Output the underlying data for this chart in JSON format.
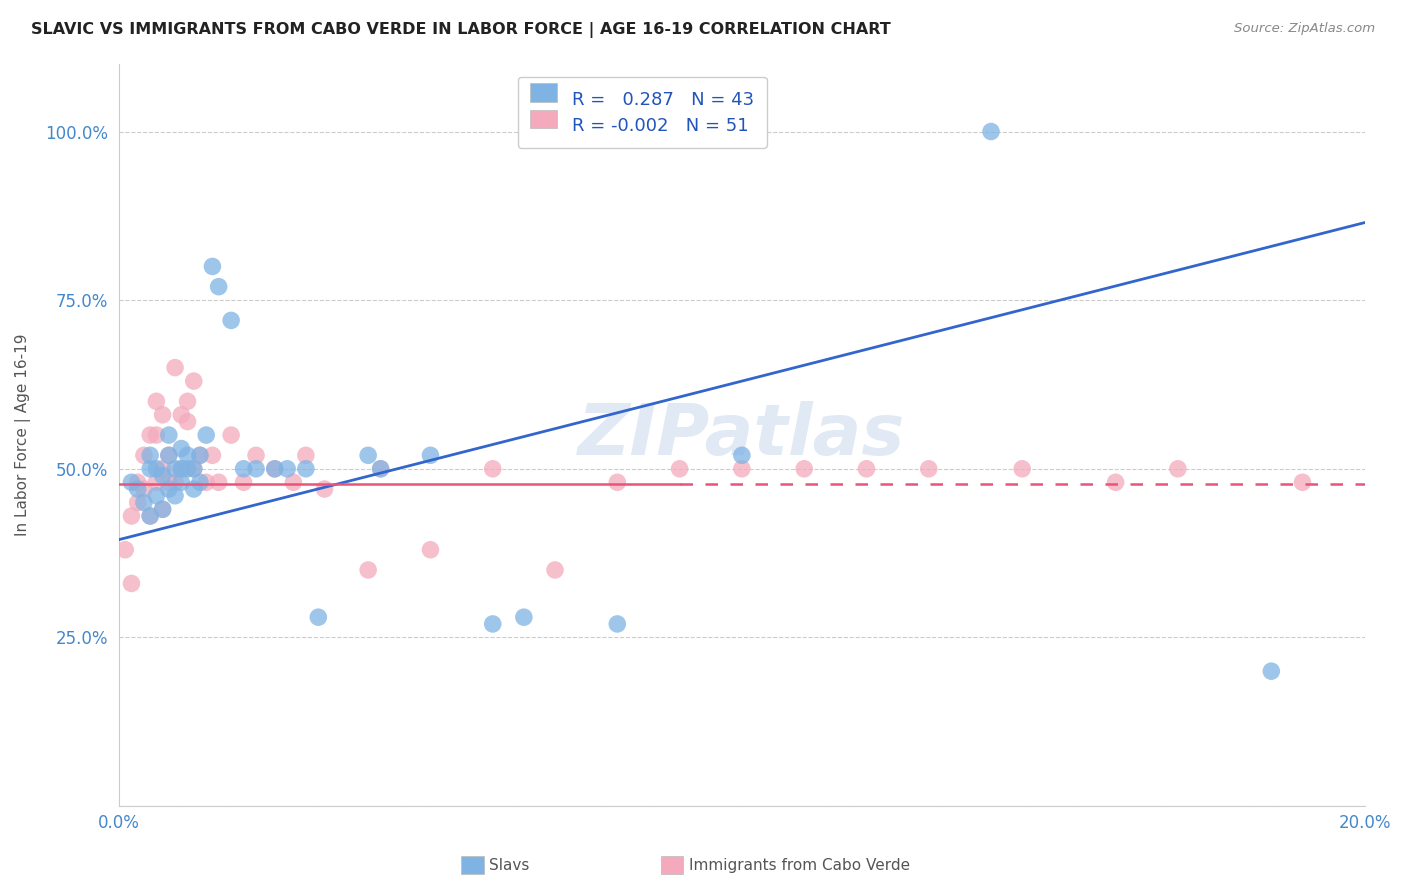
{
  "title": "SLAVIC VS IMMIGRANTS FROM CABO VERDE IN LABOR FORCE | AGE 16-19 CORRELATION CHART",
  "source": "Source: ZipAtlas.com",
  "ylabel_label": "In Labor Force | Age 16-19",
  "xlim": [
    0.0,
    0.2
  ],
  "ylim": [
    0.0,
    1.1
  ],
  "xticks": [
    0.0,
    0.04,
    0.08,
    0.12,
    0.16,
    0.2
  ],
  "xtick_labels": [
    "0.0%",
    "",
    "",
    "",
    "",
    "20.0%"
  ],
  "ytick_positions": [
    0.0,
    0.25,
    0.5,
    0.75,
    1.0
  ],
  "ytick_labels": [
    "",
    "25.0%",
    "50.0%",
    "75.0%",
    "100.0%"
  ],
  "blue_R": 0.287,
  "blue_N": 43,
  "pink_R": -0.002,
  "pink_N": 51,
  "blue_color": "#7EB3E3",
  "pink_color": "#F4AABC",
  "trendline_blue_color": "#3366CC",
  "trendline_pink_color": "#E8547A",
  "background_color": "#FFFFFF",
  "grid_color": "#CCCCCC",
  "watermark_text": "ZIPatlas",
  "blue_trendline_x0": 0.0,
  "blue_trendline_y0": 0.395,
  "blue_trendline_x1": 0.2,
  "blue_trendline_y1": 0.865,
  "pink_trendline_x0": 0.0,
  "pink_trendline_y0": 0.477,
  "pink_trendline_x1": 0.2,
  "pink_trendline_y1": 0.477,
  "blue_scatter_x": [
    0.002,
    0.003,
    0.004,
    0.005,
    0.005,
    0.005,
    0.006,
    0.006,
    0.007,
    0.007,
    0.008,
    0.008,
    0.008,
    0.009,
    0.009,
    0.01,
    0.01,
    0.01,
    0.011,
    0.011,
    0.012,
    0.012,
    0.013,
    0.013,
    0.014,
    0.015,
    0.016,
    0.018,
    0.02,
    0.022,
    0.025,
    0.027,
    0.03,
    0.032,
    0.04,
    0.042,
    0.05,
    0.06,
    0.065,
    0.08,
    0.1,
    0.14,
    0.185
  ],
  "blue_scatter_y": [
    0.48,
    0.47,
    0.45,
    0.5,
    0.43,
    0.52,
    0.46,
    0.5,
    0.49,
    0.44,
    0.47,
    0.52,
    0.55,
    0.46,
    0.5,
    0.48,
    0.5,
    0.53,
    0.5,
    0.52,
    0.5,
    0.47,
    0.52,
    0.48,
    0.55,
    0.8,
    0.77,
    0.72,
    0.5,
    0.5,
    0.5,
    0.5,
    0.5,
    0.28,
    0.52,
    0.5,
    0.52,
    0.27,
    0.28,
    0.27,
    0.52,
    1.0,
    0.2
  ],
  "pink_scatter_x": [
    0.001,
    0.002,
    0.002,
    0.003,
    0.003,
    0.004,
    0.004,
    0.005,
    0.005,
    0.006,
    0.006,
    0.006,
    0.007,
    0.007,
    0.007,
    0.008,
    0.008,
    0.009,
    0.009,
    0.01,
    0.01,
    0.011,
    0.011,
    0.012,
    0.012,
    0.013,
    0.014,
    0.015,
    0.016,
    0.018,
    0.02,
    0.022,
    0.025,
    0.028,
    0.03,
    0.033,
    0.04,
    0.042,
    0.05,
    0.06,
    0.07,
    0.08,
    0.09,
    0.1,
    0.11,
    0.12,
    0.13,
    0.145,
    0.16,
    0.17,
    0.19
  ],
  "pink_scatter_y": [
    0.38,
    0.43,
    0.33,
    0.48,
    0.45,
    0.52,
    0.47,
    0.55,
    0.43,
    0.6,
    0.48,
    0.55,
    0.5,
    0.58,
    0.44,
    0.52,
    0.48,
    0.65,
    0.48,
    0.58,
    0.5,
    0.6,
    0.57,
    0.63,
    0.5,
    0.52,
    0.48,
    0.52,
    0.48,
    0.55,
    0.48,
    0.52,
    0.5,
    0.48,
    0.52,
    0.47,
    0.35,
    0.5,
    0.38,
    0.5,
    0.35,
    0.48,
    0.5,
    0.5,
    0.5,
    0.5,
    0.5,
    0.5,
    0.48,
    0.5,
    0.48
  ]
}
